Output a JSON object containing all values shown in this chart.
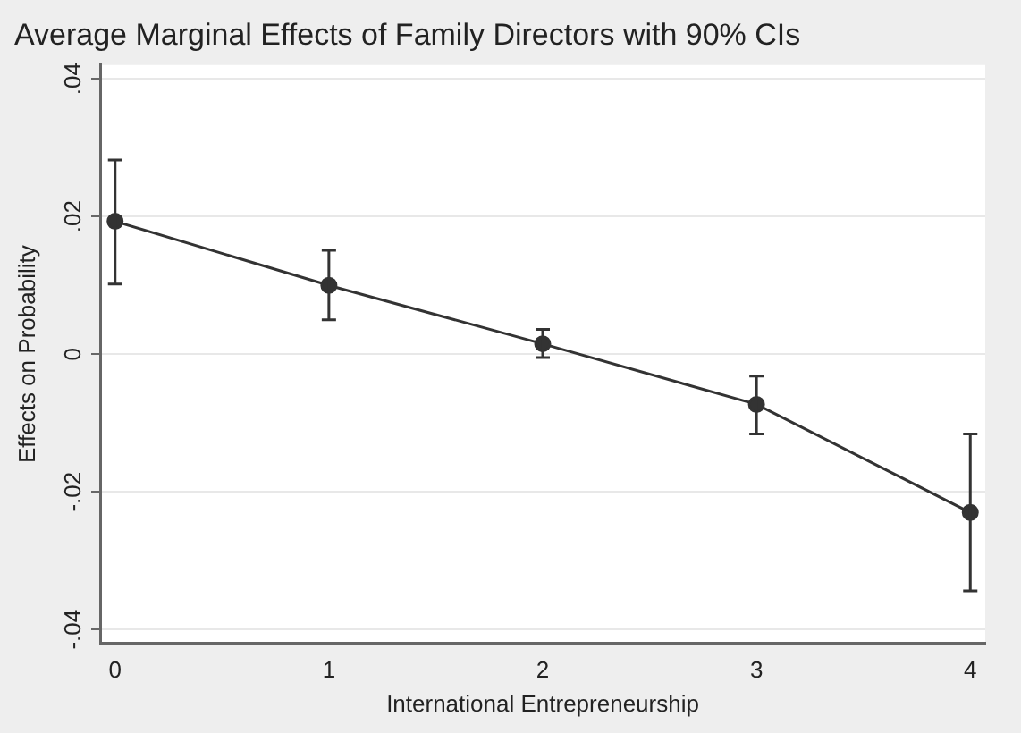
{
  "chart_data": {
    "type": "line",
    "title": "Average Marginal Effects of Family Directors with 90% CIs",
    "xlabel": "International Entrepreneurship",
    "ylabel": "Effects on Probability",
    "x": [
      0,
      1,
      2,
      3,
      4
    ],
    "series": [
      {
        "color": "#333333",
        "values": [
          0.0193,
          0.01,
          0.0015,
          -0.0073,
          -0.023
        ],
        "errors": [
          [
            0.0102,
            0.0282
          ],
          [
            0.005,
            0.0151
          ],
          [
            -0.0005,
            0.0036
          ],
          [
            -0.0116,
            -0.0032
          ],
          [
            -0.0344,
            -0.0116
          ]
        ]
      }
    ],
    "xlim": [
      -0.07,
      4.07
    ],
    "ylim": [
      -0.042,
      0.042
    ],
    "xticks": [
      0,
      1,
      2,
      3,
      4
    ],
    "yticks": [
      {
        "value": -0.04,
        "label": "-.04"
      },
      {
        "value": -0.02,
        "label": "-.02"
      },
      {
        "value": 0,
        "label": "0"
      },
      {
        "value": 0.02,
        "label": ".02"
      },
      {
        "value": 0.04,
        "label": ".04"
      }
    ],
    "grid": "y",
    "marker": "circle",
    "line_style": "solid"
  }
}
